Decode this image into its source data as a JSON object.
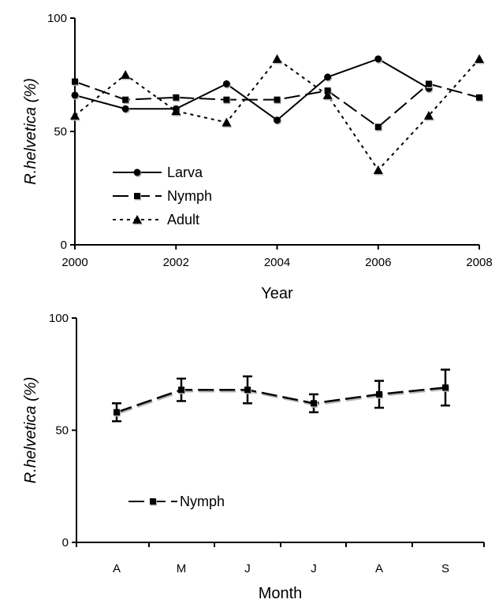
{
  "chart_data": [
    {
      "type": "line",
      "x": [
        2000,
        2001,
        2002,
        2003,
        2004,
        2005,
        2006,
        2007,
        2008
      ],
      "xticks": [
        "2000",
        "2002",
        "2004",
        "2006",
        "2008"
      ],
      "xlim": [
        2000,
        2008
      ],
      "ylim": [
        0,
        100
      ],
      "yticks": [
        "0",
        "50",
        "100"
      ],
      "xlabel": "Year",
      "ylabel_italic": "R.helvetica",
      "ylabel_suffix": " (%)",
      "grid": false,
      "legend": "bottom-left",
      "series": [
        {
          "name": "Larva",
          "marker": "circle",
          "dash": "solid",
          "values": [
            66,
            60,
            60,
            71,
            55,
            74,
            82,
            69,
            null
          ]
        },
        {
          "name": "Nymph",
          "marker": "square",
          "dash": "long-dash",
          "values": [
            72,
            64,
            65,
            64,
            64,
            68,
            52,
            71,
            65
          ]
        },
        {
          "name": "Adult",
          "marker": "triangle",
          "dash": "dotted",
          "values": [
            57,
            75,
            59,
            54,
            82,
            66,
            33,
            57,
            82
          ]
        }
      ]
    },
    {
      "type": "line",
      "categories": [
        "A",
        "M",
        "J",
        "J",
        "A",
        "S"
      ],
      "ylim": [
        0,
        100
      ],
      "yticks": [
        "0",
        "50",
        "100"
      ],
      "xlabel": "Month",
      "ylabel_italic": "R.helvetica",
      "ylabel_suffix": " (%)",
      "grid": false,
      "legend": "bottom-left",
      "series": [
        {
          "name": "Nymph",
          "marker": "square",
          "dash": "long-dash",
          "values": [
            58,
            68,
            68,
            62,
            66,
            69
          ],
          "error": [
            4,
            5,
            6,
            4,
            6,
            8
          ]
        }
      ]
    }
  ]
}
